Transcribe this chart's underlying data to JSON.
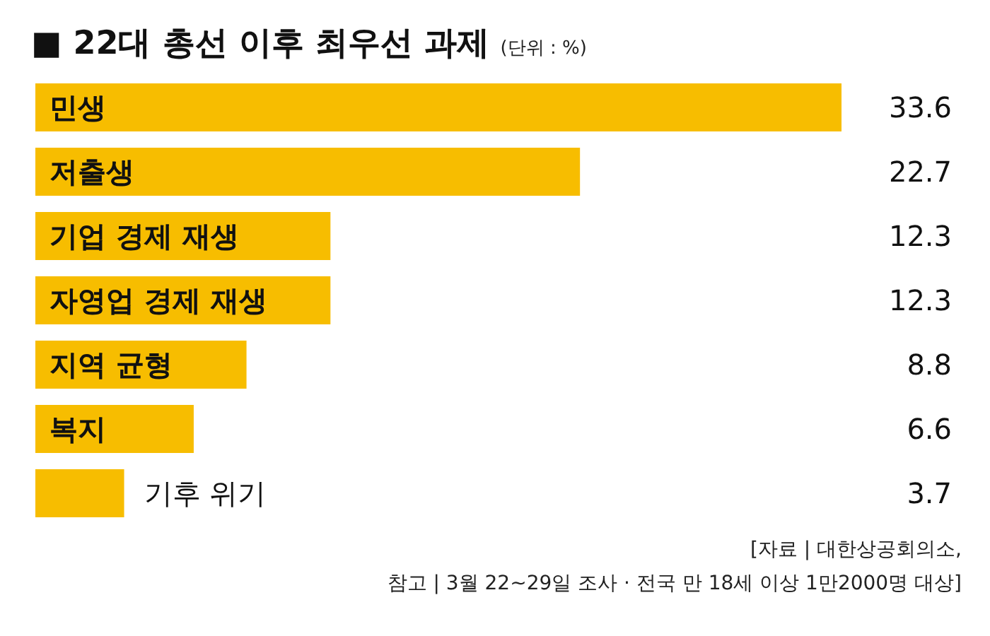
{
  "chart_data": {
    "type": "bar",
    "orientation": "horizontal",
    "title": "■ 22대 총선 이후 최우선 과제",
    "subtitle": "(단위 : %)",
    "categories": [
      "민생",
      "저출생",
      "기업 경제 재생",
      "자영업 경제 재생",
      "지역 균형",
      "복지",
      "기후 위기"
    ],
    "values": [
      33.6,
      22.7,
      12.3,
      12.3,
      8.8,
      6.6,
      3.7
    ],
    "color": "#f7bd00",
    "data_labels": true,
    "annotations": [
      "[자료 | 대한상공회의소,",
      "참고 | 3월 22~29일 조사 · 전국 만 18세 이상 1만2000명 대상]"
    ]
  }
}
